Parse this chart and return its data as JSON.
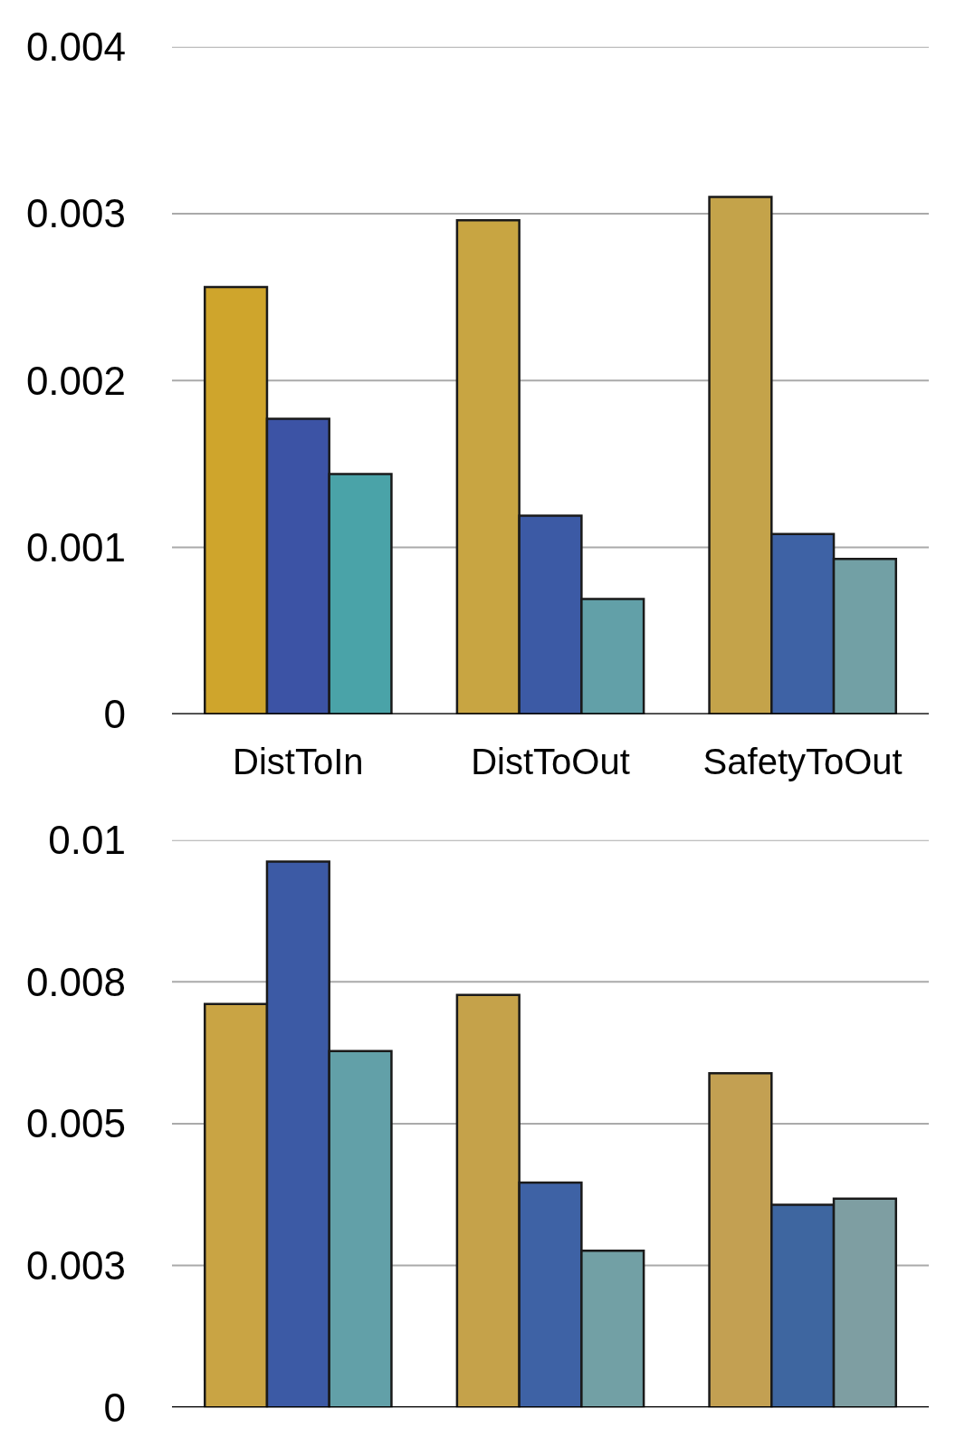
{
  "chart_data": [
    {
      "type": "bar",
      "categories": [
        "DistToIn",
        "DistToOut",
        "SafetyToOut"
      ],
      "ylim": [
        0,
        0.004
      ],
      "yticks": [
        0,
        0.001,
        0.002,
        0.003,
        0.004
      ],
      "grid": "y",
      "series": [
        {
          "colors": [
            "#cfa52c",
            "#c8a542",
            "#c4a34a"
          ],
          "values": [
            0.00256,
            0.00296,
            0.0031
          ]
        },
        {
          "colors": [
            "#3c53a5",
            "#3c5aa5",
            "#3e62a5"
          ],
          "values": [
            0.00177,
            0.00119,
            0.00108
          ]
        },
        {
          "colors": [
            "#4aa3a8",
            "#62a0a8",
            "#72a0a5"
          ],
          "values": [
            0.00144,
            0.00069,
            0.00093
          ]
        }
      ]
    },
    {
      "type": "bar",
      "categories": [
        null,
        null,
        null
      ],
      "ylim": [
        0,
        0.01
      ],
      "yticks": [
        0,
        {
          "value": 0.0025,
          "label": "0.003"
        },
        0.005,
        {
          "value": 0.0075,
          "label": "0.008"
        },
        0.01
      ],
      "grid": "y",
      "tick_labels": "y",
      "series": [
        {
          "colors": [
            "#c9a444",
            "#c5a24a",
            "#c3a052"
          ],
          "values": [
            0.00711,
            0.00727,
            0.00589
          ]
        },
        {
          "colors": [
            "#3c5aa5",
            "#3e62a5",
            "#3e66a0"
          ],
          "values": [
            0.00962,
            0.00396,
            0.00357
          ]
        },
        {
          "colors": [
            "#62a0a8",
            "#72a0a5",
            "#7e9ea2"
          ],
          "values": [
            0.00628,
            0.00276,
            0.00368
          ]
        }
      ]
    }
  ]
}
